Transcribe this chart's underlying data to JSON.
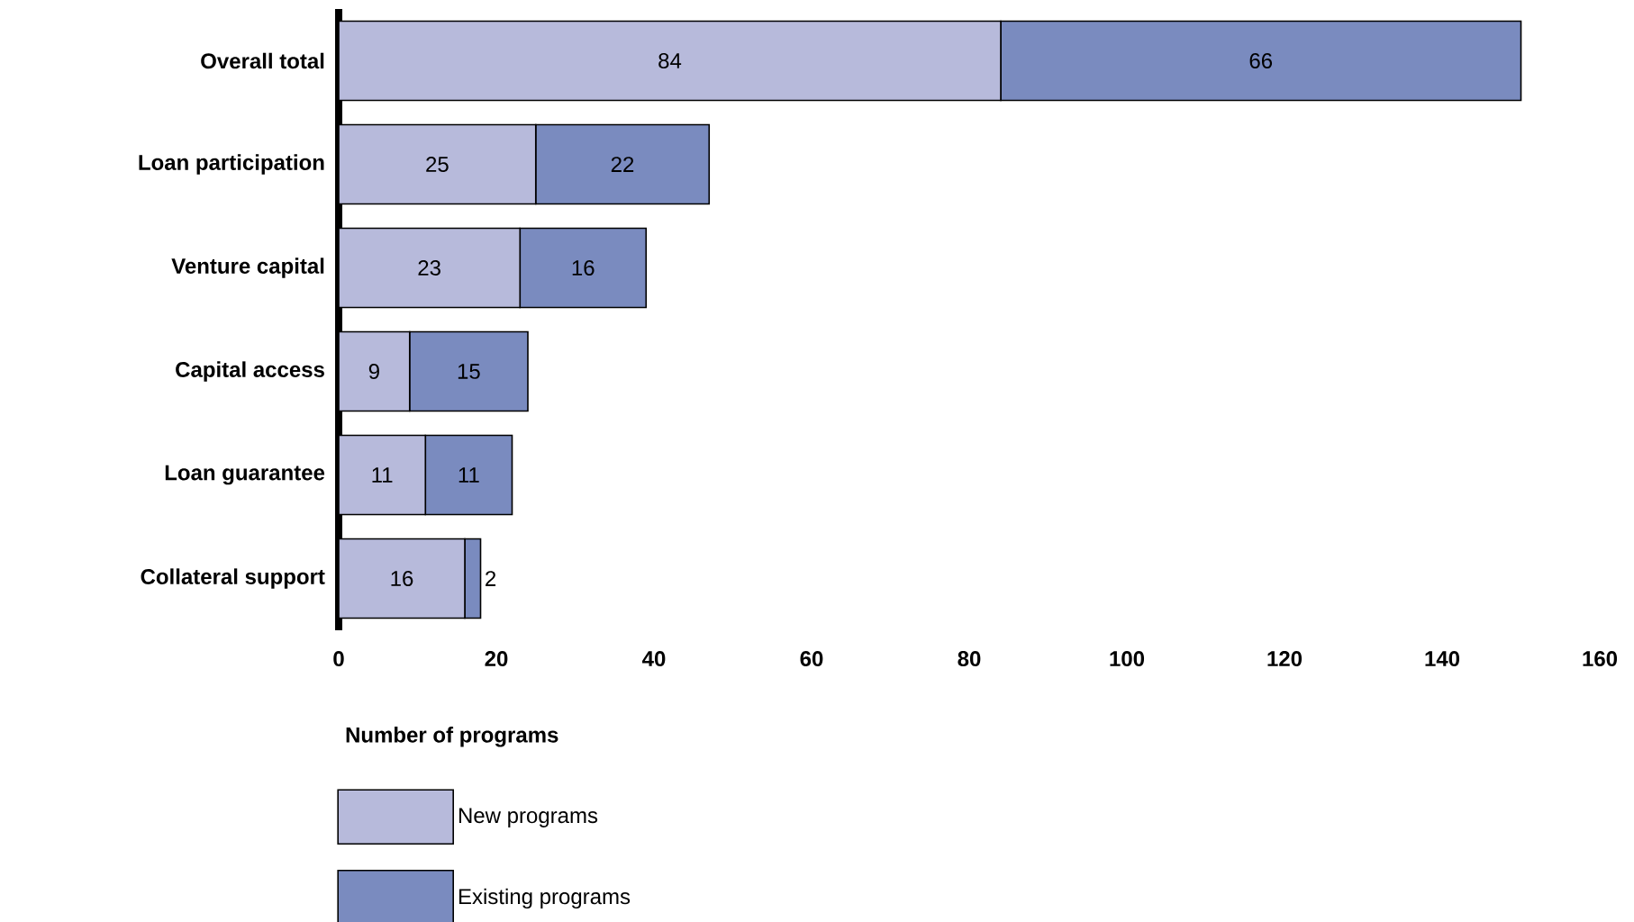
{
  "chart_data": {
    "type": "bar",
    "orientation": "horizontal",
    "stacked": true,
    "categories": [
      "Overall total",
      "Loan participation",
      "Venture capital",
      "Capital access",
      "Loan guarantee",
      "Collateral support"
    ],
    "series": [
      {
        "name": "New programs",
        "color": "#b7badb",
        "values": [
          84,
          25,
          23,
          9,
          11,
          16
        ]
      },
      {
        "name": "Existing programs",
        "color": "#7a8bbf",
        "values": [
          66,
          22,
          16,
          15,
          11,
          2
        ]
      }
    ],
    "xlabel": "Number of programs",
    "xlim": [
      0,
      160
    ],
    "xticks": [
      0,
      20,
      40,
      60,
      80,
      100,
      120,
      140,
      160
    ],
    "data_labels": true,
    "legend": "bottom left",
    "grid": false
  }
}
